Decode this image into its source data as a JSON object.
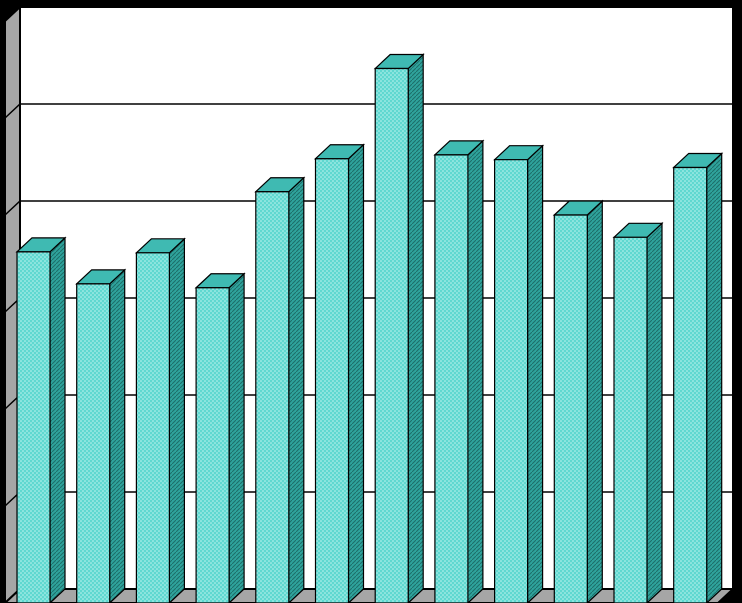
{
  "chart_data": {
    "type": "bar3d",
    "categories": [
      null,
      null,
      null,
      null,
      null,
      null,
      null,
      null,
      null,
      null,
      null,
      null
    ],
    "values": [
      3.62,
      3.29,
      3.61,
      3.25,
      4.24,
      4.58,
      5.51,
      4.62,
      4.57,
      4.0,
      3.77,
      4.49
    ],
    "color": "#5fd8d0",
    "ylim": [
      0,
      6
    ],
    "yticks": [
      0,
      1,
      2,
      3,
      4,
      5,
      6
    ],
    "grid": true
  }
}
